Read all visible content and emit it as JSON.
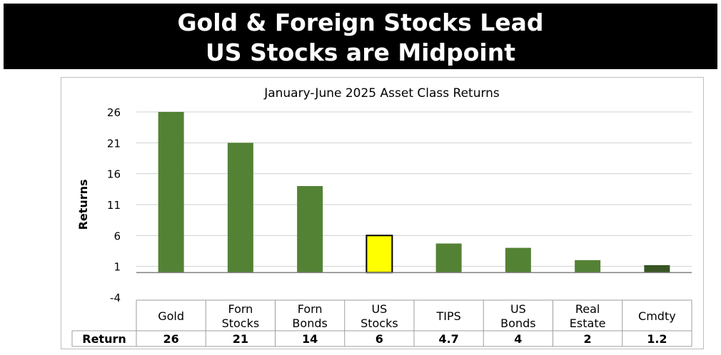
{
  "banner": {
    "line1": "Gold & Foreign Stocks Lead",
    "line2": "US Stocks are Midpoint"
  },
  "chart_data": {
    "type": "bar",
    "title": "January-June   2025 Asset Class Returns",
    "ylabel": "Returns",
    "xlabel": "",
    "ylim": [
      -4,
      26
    ],
    "yticks": [
      26,
      21,
      16,
      11,
      6,
      1,
      -4
    ],
    "grid": true,
    "categories": [
      [
        "Gold"
      ],
      [
        "Forn",
        "Stocks"
      ],
      [
        "Forn",
        "Bonds"
      ],
      [
        "US",
        "Stocks"
      ],
      [
        "TIPS"
      ],
      [
        "US",
        "Bonds"
      ],
      [
        "Real",
        "Estate"
      ],
      [
        "Cmdty"
      ]
    ],
    "values": [
      26,
      21,
      14,
      6,
      4.7,
      4,
      2,
      1.2
    ],
    "value_labels": [
      "26",
      "21",
      "14",
      "6",
      "4.7",
      "4",
      "2",
      "1.2"
    ],
    "table_row_label": "Return",
    "colors": {
      "default": "#548235",
      "highlight": "#ffff00",
      "highlight_stroke": "#000000",
      "last": "#375623",
      "grid": "#d0d0d0",
      "axis": "#808080"
    },
    "highlight_index": 3,
    "dark_index": 7
  }
}
